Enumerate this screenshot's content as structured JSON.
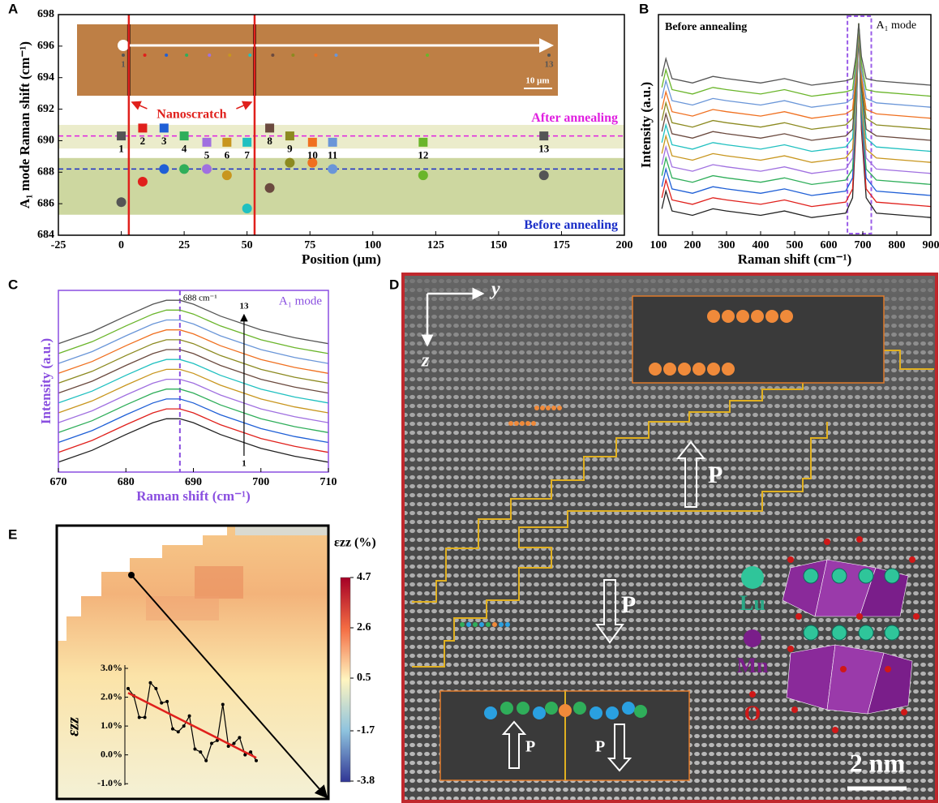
{
  "panel_labels": [
    "A",
    "B",
    "C",
    "D",
    "E"
  ],
  "chart_data": [
    {
      "type": "scatter",
      "xlabel": "Position (μm)",
      "ylabel": "A₁ mode Raman shift (cm⁻¹)",
      "xlim": [
        -25,
        200
      ],
      "xticks": [
        -25,
        0,
        25,
        50,
        75,
        100,
        125,
        150,
        175,
        200
      ],
      "ylim": [
        684,
        698
      ],
      "yticks": [
        684,
        686,
        688,
        690,
        692,
        694,
        696,
        698
      ],
      "x": [
        0,
        8.5,
        17,
        25,
        34,
        42,
        50,
        59,
        67,
        76,
        84,
        120,
        168
      ],
      "labels": [
        "1",
        "2",
        "3",
        "4",
        "5",
        "6",
        "7",
        "8",
        "9",
        "10",
        "11",
        "12",
        "13"
      ],
      "colors": [
        "#555555",
        "#e0201c",
        "#1f5fd6",
        "#2fae5a",
        "#a070e0",
        "#c8961e",
        "#20c0c0",
        "#6b4a3f",
        "#8c8a20",
        "#f07020",
        "#6a96d8",
        "#6ab52a",
        "#555555"
      ],
      "series": [
        {
          "name": "After annealing",
          "marker": "square",
          "color": "#e020e0",
          "values": [
            690.3,
            690.8,
            690.8,
            690.3,
            689.9,
            689.9,
            689.9,
            690.8,
            690.3,
            689.9,
            689.9,
            689.9,
            690.3
          ]
        },
        {
          "name": "Before annealing",
          "marker": "circle",
          "color": "#1a2ec8",
          "values": [
            686.1,
            687.4,
            688.2,
            688.2,
            688.2,
            687.8,
            685.7,
            687.0,
            688.6,
            688.6,
            688.2,
            687.8,
            687.8
          ]
        }
      ],
      "reference_lines": [
        690.3,
        688.2
      ],
      "bands": [
        [
          689.5,
          691
        ],
        [
          685.3,
          688.9
        ]
      ],
      "band_colors": [
        "#ebeccb",
        "#cdd7a0"
      ],
      "scratch_x": [
        3,
        53
      ],
      "scratch_label": "Nanoscratch",
      "scratch_color": "#e0201c",
      "scale_bar": "10 μm",
      "photo_labels": [
        "1",
        "13"
      ]
    },
    {
      "type": "line",
      "title": "Before annealing",
      "xlabel": "Raman shift (cm⁻¹)",
      "ylabel": "Intensity (a.u.)",
      "xlim": [
        100,
        900
      ],
      "xticks": [
        100,
        200,
        300,
        400,
        500,
        600,
        700,
        800,
        900
      ],
      "ylim": [
        0,
        100
      ],
      "x": [
        110,
        122,
        140,
        200,
        260,
        300,
        400,
        470,
        550,
        650,
        670,
        680,
        688,
        696,
        710,
        740,
        900
      ],
      "series": [
        {
          "color": "#222222",
          "values": [
            12,
            20,
            11,
            9,
            12,
            11,
            9,
            11,
            8,
            10,
            17,
            48,
            96,
            48,
            17,
            10,
            8
          ]
        },
        {
          "color": "#e0201c",
          "values": [
            17,
            25,
            16,
            14,
            17,
            16,
            14,
            16,
            13,
            15,
            21,
            50,
            96,
            50,
            21,
            15,
            13
          ]
        },
        {
          "color": "#1f5fd6",
          "values": [
            22,
            30,
            21,
            19,
            22,
            21,
            19,
            21,
            18,
            20,
            26,
            53,
            96,
            53,
            26,
            20,
            18
          ]
        },
        {
          "color": "#2fae5a",
          "values": [
            27,
            35,
            26,
            24,
            27,
            26,
            24,
            26,
            23,
            25,
            30,
            56,
            96,
            56,
            30,
            25,
            23
          ]
        },
        {
          "color": "#a070e0",
          "values": [
            32,
            40,
            31,
            29,
            32,
            31,
            29,
            31,
            28,
            30,
            35,
            59,
            96,
            59,
            35,
            30,
            28
          ]
        },
        {
          "color": "#c8961e",
          "values": [
            37,
            45,
            36,
            34,
            37,
            36,
            34,
            36,
            33,
            35,
            39,
            61,
            96,
            61,
            39,
            35,
            33
          ]
        },
        {
          "color": "#20c0c0",
          "values": [
            42,
            50,
            41,
            39,
            42,
            41,
            39,
            41,
            38,
            40,
            44,
            64,
            96,
            64,
            44,
            40,
            38
          ]
        },
        {
          "color": "#6b4a3f",
          "values": [
            47,
            55,
            46,
            44,
            47,
            46,
            44,
            46,
            43,
            45,
            48,
            67,
            96,
            67,
            48,
            45,
            43
          ]
        },
        {
          "color": "#8c8a20",
          "values": [
            52,
            60,
            51,
            49,
            52,
            51,
            49,
            51,
            48,
            50,
            53,
            70,
            96,
            70,
            53,
            50,
            48
          ]
        },
        {
          "color": "#f07020",
          "values": [
            57,
            65,
            56,
            54,
            57,
            56,
            54,
            56,
            53,
            55,
            57,
            72,
            96,
            72,
            57,
            55,
            53
          ]
        },
        {
          "color": "#6a96d8",
          "values": [
            62,
            70,
            61,
            59,
            62,
            61,
            59,
            61,
            58,
            60,
            62,
            75,
            96,
            75,
            62,
            60,
            58
          ]
        },
        {
          "color": "#6ab52a",
          "values": [
            67,
            75,
            66,
            64,
            67,
            66,
            64,
            66,
            63,
            65,
            66,
            78,
            96,
            78,
            66,
            65,
            63
          ]
        },
        {
          "color": "#555555",
          "values": [
            72,
            80,
            71,
            69,
            72,
            71,
            69,
            71,
            68,
            70,
            71,
            81,
            96,
            81,
            71,
            70,
            68
          ]
        }
      ],
      "highlight": "A₁ mode",
      "highlight_x": [
        655,
        725
      ],
      "highlight_color": "#9a5ce8"
    },
    {
      "type": "line",
      "title": "A₁ mode",
      "xlabel": "Raman shift (cm⁻¹)",
      "ylabel": "Intensity (a.u.)",
      "xlim": [
        670,
        710
      ],
      "xticks": [
        670,
        680,
        690,
        700,
        710
      ],
      "ylim": [
        0,
        92
      ],
      "x": [
        670,
        675,
        680,
        684,
        686,
        688,
        690,
        694,
        700,
        705,
        710
      ],
      "series": [
        {
          "color": "#222222",
          "values": [
            5,
            11,
            19,
            25,
            27,
            27,
            25,
            19,
            12,
            8,
            5
          ]
        },
        {
          "color": "#e0201c",
          "values": [
            10,
            16,
            24,
            30,
            32,
            32,
            30,
            24,
            17,
            13,
            10
          ]
        },
        {
          "color": "#1f5fd6",
          "values": [
            15,
            21,
            29,
            35,
            37,
            37,
            35,
            29,
            22,
            18,
            15
          ]
        },
        {
          "color": "#2fae5a",
          "values": [
            20,
            26,
            34,
            40,
            42,
            42,
            40,
            34,
            27,
            23,
            20
          ]
        },
        {
          "color": "#a070e0",
          "values": [
            25,
            31,
            39,
            45,
            47,
            47,
            45,
            39,
            32,
            28,
            25
          ]
        },
        {
          "color": "#c8961e",
          "values": [
            30,
            36,
            44,
            50,
            52,
            52,
            50,
            44,
            37,
            33,
            30
          ]
        },
        {
          "color": "#20c0c0",
          "values": [
            35,
            41,
            49,
            55,
            57,
            57,
            55,
            49,
            42,
            38,
            35
          ]
        },
        {
          "color": "#6b4a3f",
          "values": [
            40,
            46,
            54,
            60,
            62,
            62,
            60,
            54,
            47,
            43,
            40
          ]
        },
        {
          "color": "#8c8a20",
          "values": [
            45,
            51,
            59,
            65,
            67,
            67,
            65,
            59,
            52,
            48,
            45
          ]
        },
        {
          "color": "#f07020",
          "values": [
            50,
            56,
            64,
            70,
            72,
            72,
            70,
            64,
            57,
            53,
            50
          ]
        },
        {
          "color": "#6a96d8",
          "values": [
            55,
            61,
            69,
            75,
            77,
            77,
            75,
            69,
            62,
            58,
            55
          ]
        },
        {
          "color": "#6ab52a",
          "values": [
            60,
            66,
            74,
            80,
            82,
            82,
            80,
            74,
            67,
            63,
            60
          ]
        },
        {
          "color": "#555555",
          "values": [
            65,
            71,
            79,
            85,
            87,
            87,
            85,
            79,
            72,
            68,
            65
          ]
        }
      ],
      "marker_line": 688,
      "marker_label": "688 cm⁻¹",
      "arrow_x": 697.5,
      "arrow_labels": [
        "1",
        "13"
      ],
      "frame_color": "#8a4fe0"
    },
    {
      "type": "heatmap",
      "colorbar_label": "εzz (%)",
      "clim": [
        -3.8,
        4.7
      ],
      "cticks": [
        4.7,
        2.6,
        0.5,
        -1.7,
        -3.8
      ],
      "inset": {
        "ylabel": "εzz",
        "ylim": [
          -1.05,
          3.0
        ],
        "yticks": [
          {
            "value": 3,
            "label": "3.0%"
          },
          {
            "value": 2,
            "label": "2.0%"
          },
          {
            "value": 1,
            "label": "1.0%"
          },
          {
            "value": 0,
            "label": "0.0%"
          },
          {
            "value": -1,
            "label": "-1.0%"
          }
        ],
        "values": [
          2.3,
          2.05,
          1.3,
          1.3,
          2.5,
          2.3,
          1.8,
          1.85,
          0.9,
          0.8,
          1.0,
          1.35,
          0.2,
          0.1,
          -0.2,
          0.4,
          0.5,
          1.75,
          0.3,
          0.4,
          0.6,
          0.0,
          0.1,
          -0.2
        ],
        "color": "#000000",
        "fit": [
          2.15,
          -0.1
        ],
        "fit_color": "#e0201c"
      }
    }
  ],
  "image_panel": {
    "axis_y": "y",
    "axis_z": "z",
    "polarization": [
      "P",
      "P",
      "P",
      "P"
    ],
    "legend": [
      "Lu",
      "Mn",
      "O"
    ],
    "scale_bar": "2 nm"
  }
}
